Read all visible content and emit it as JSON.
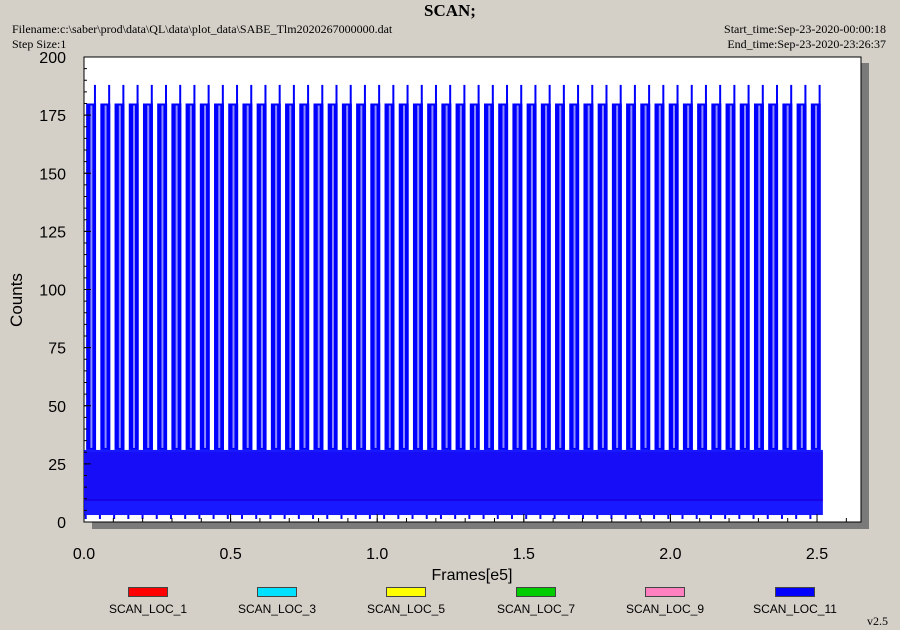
{
  "header": {
    "title": "SCAN;",
    "filename": "Filename:c:\\saber\\prod\\data\\QL\\data\\plot_data\\SABE_Tlm2020267000000.dat",
    "step_size": "Step Size:1",
    "start_time": "Start_time:Sep-23-2020-00:00:18",
    "end_time": "End_time:Sep-23-2020-23:26:37"
  },
  "version": "v2.5",
  "chart_data": {
    "type": "line",
    "title": "SCAN;",
    "xlabel": "Frames[e5]",
    "ylabel": "Counts",
    "xlim": [
      0.0,
      2.65
    ],
    "ylim": [
      0,
      200
    ],
    "x_ticks": [
      "0.0",
      "0.5",
      "1.0",
      "1.5",
      "2.0",
      "2.5"
    ],
    "y_ticks": [
      "0",
      "25",
      "50",
      "75",
      "100",
      "125",
      "150",
      "175",
      "200"
    ],
    "grid": false,
    "legend_position": "bottom",
    "x_range": [
      0.0,
      2.52
    ],
    "series": [
      {
        "name": "SCAN_LOC_1",
        "color": "#ff0000",
        "band": [
          9,
          30
        ],
        "peak": null
      },
      {
        "name": "SCAN_LOC_3",
        "color": "#00e0ff",
        "band": [
          10,
          30
        ],
        "peak": null
      },
      {
        "name": "SCAN_LOC_5",
        "color": "#ffff00",
        "band": [
          10,
          30
        ],
        "peak": null
      },
      {
        "name": "SCAN_LOC_7",
        "color": "#00cc00",
        "band": [
          10,
          30
        ],
        "peak": null
      },
      {
        "name": "SCAN_LOC_9",
        "color": "#ff80c0",
        "band": [
          10,
          30
        ],
        "peak": null
      },
      {
        "name": "SCAN_LOC_11",
        "color": "#0000ff",
        "band": [
          3,
          31
        ],
        "peak": [
          180,
          188
        ]
      }
    ]
  }
}
